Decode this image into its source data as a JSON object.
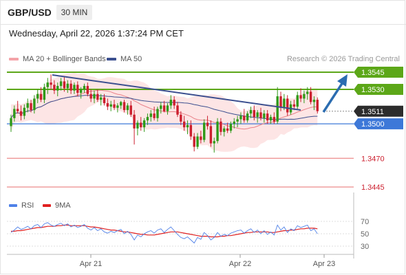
{
  "header": {
    "symbol": "GBP/USD",
    "timeframe": "30 MIN"
  },
  "datetime": "Wednesday, April 22, 2026 1:37:24 PM CET",
  "legend": {
    "ma20_label": "MA 20 + Bollinger Bands",
    "ma50_label": "MA 50",
    "credit": "Research © 2026 Trading Central"
  },
  "colors": {
    "up": "#2f9a18",
    "down": "#cc1f2e",
    "ma20": "#e9828a",
    "ma50": "#3b4f8f",
    "band_fill": "#fde1e1",
    "resistance": "#5ca718",
    "pivot": "#3d78d8",
    "support": "#ec8a8a",
    "trend": "#3b4f8f",
    "arrow": "#2b6cb0",
    "price_box": "#2c2c2c",
    "rsi": "#4f81e8",
    "rsi_ma": "#e02020"
  },
  "levels": [
    {
      "value": 1.3545,
      "label": "1.3545",
      "kind": "resistance"
    },
    {
      "value": 1.353,
      "label": "1.3530",
      "kind": "resistance"
    },
    {
      "value": 1.3511,
      "label": "1.3511",
      "kind": "current"
    },
    {
      "value": 1.35,
      "label": "1.3500",
      "kind": "pivot"
    },
    {
      "value": 1.347,
      "label": "1.3470",
      "kind": "support"
    },
    {
      "value": 1.3445,
      "label": "1.3445",
      "kind": "support"
    }
  ],
  "rsi": {
    "label": "RSI",
    "ma_label": "9MA",
    "ticks": [
      "70",
      "50",
      "30"
    ]
  },
  "xaxis": {
    "labels": [
      "Apr 21",
      "Apr 22",
      "Apr 23"
    ]
  },
  "chart_data": {
    "type": "candlestick",
    "y_scale": "price",
    "x_labels": [
      "Apr 21",
      "Apr 22",
      "Apr 23"
    ],
    "levels": [
      1.3545,
      1.353,
      1.3511,
      1.35,
      1.347,
      1.3445
    ],
    "candles": [
      [
        1.3498,
        1.3508,
        1.3493,
        1.3505
      ],
      [
        1.3505,
        1.3516,
        1.3502,
        1.3513
      ],
      [
        1.3513,
        1.352,
        1.3509,
        1.3511
      ],
      [
        1.3511,
        1.3516,
        1.3503,
        1.3507
      ],
      [
        1.3507,
        1.3517,
        1.3504,
        1.3514
      ],
      [
        1.3514,
        1.3522,
        1.351,
        1.3518
      ],
      [
        1.3518,
        1.3521,
        1.351,
        1.3512
      ],
      [
        1.3512,
        1.3525,
        1.3509,
        1.3522
      ],
      [
        1.3522,
        1.353,
        1.3518,
        1.3526
      ],
      [
        1.3526,
        1.3532,
        1.3519,
        1.3521
      ],
      [
        1.3521,
        1.3535,
        1.3518,
        1.3532
      ],
      [
        1.3532,
        1.354,
        1.3526,
        1.3536
      ],
      [
        1.3536,
        1.3543,
        1.353,
        1.3534
      ],
      [
        1.3534,
        1.3538,
        1.3526,
        1.3529
      ],
      [
        1.3529,
        1.3536,
        1.3524,
        1.3533
      ],
      [
        1.3533,
        1.354,
        1.3529,
        1.3537
      ],
      [
        1.3537,
        1.3541,
        1.3528,
        1.3531
      ],
      [
        1.3531,
        1.3538,
        1.3527,
        1.3535
      ],
      [
        1.3535,
        1.3538,
        1.3526,
        1.3529
      ],
      [
        1.3529,
        1.3536,
        1.3526,
        1.3534
      ],
      [
        1.3534,
        1.3537,
        1.3524,
        1.3527
      ],
      [
        1.3527,
        1.3532,
        1.3522,
        1.353
      ],
      [
        1.353,
        1.3535,
        1.3527,
        1.3533
      ],
      [
        1.3533,
        1.3536,
        1.3524,
        1.3526
      ],
      [
        1.3526,
        1.353,
        1.3519,
        1.3522
      ],
      [
        1.3522,
        1.3529,
        1.3518,
        1.3526
      ],
      [
        1.3526,
        1.353,
        1.3519,
        1.3521
      ],
      [
        1.3521,
        1.3526,
        1.3516,
        1.3523
      ],
      [
        1.3523,
        1.3526,
        1.3516,
        1.3518
      ],
      [
        1.3518,
        1.3522,
        1.3512,
        1.3515
      ],
      [
        1.3515,
        1.352,
        1.3511,
        1.3517
      ],
      [
        1.3517,
        1.3521,
        1.3512,
        1.3514
      ],
      [
        1.3514,
        1.3518,
        1.351,
        1.3516
      ],
      [
        1.3516,
        1.352,
        1.3513,
        1.3519
      ],
      [
        1.3519,
        1.3521,
        1.351,
        1.3512
      ],
      [
        1.3512,
        1.3518,
        1.3508,
        1.3516
      ],
      [
        1.3516,
        1.352,
        1.3506,
        1.3508
      ],
      [
        1.3508,
        1.3512,
        1.3482,
        1.3496
      ],
      [
        1.3496,
        1.3503,
        1.349,
        1.3501
      ],
      [
        1.3501,
        1.3506,
        1.3494,
        1.3497
      ],
      [
        1.3497,
        1.3505,
        1.3493,
        1.3503
      ],
      [
        1.3503,
        1.3509,
        1.3499,
        1.3506
      ],
      [
        1.3506,
        1.3512,
        1.3502,
        1.3509
      ],
      [
        1.3509,
        1.3515,
        1.3503,
        1.3505
      ],
      [
        1.3505,
        1.3515,
        1.3502,
        1.3513
      ],
      [
        1.3513,
        1.3519,
        1.3509,
        1.3516
      ],
      [
        1.3516,
        1.352,
        1.351,
        1.3511
      ],
      [
        1.3511,
        1.3518,
        1.3508,
        1.3516
      ],
      [
        1.3516,
        1.3525,
        1.3513,
        1.3521
      ],
      [
        1.3521,
        1.3524,
        1.3513,
        1.3516
      ],
      [
        1.3516,
        1.3519,
        1.3506,
        1.3508
      ],
      [
        1.3508,
        1.3511,
        1.3499,
        1.3502
      ],
      [
        1.3502,
        1.3507,
        1.3494,
        1.3497
      ],
      [
        1.3497,
        1.3503,
        1.3491,
        1.3499
      ],
      [
        1.3499,
        1.3503,
        1.3486,
        1.3489
      ],
      [
        1.3489,
        1.3492,
        1.3476,
        1.348
      ],
      [
        1.348,
        1.3492,
        1.3478,
        1.3489
      ],
      [
        1.3489,
        1.3494,
        1.3483,
        1.3486
      ],
      [
        1.3486,
        1.3504,
        1.3484,
        1.3501
      ],
      [
        1.3501,
        1.3507,
        1.3495,
        1.3498
      ],
      [
        1.3498,
        1.3503,
        1.348,
        1.3483
      ],
      [
        1.3483,
        1.3488,
        1.3475,
        1.3485
      ],
      [
        1.3485,
        1.3505,
        1.3483,
        1.3502
      ],
      [
        1.3502,
        1.3505,
        1.349,
        1.3493
      ],
      [
        1.3493,
        1.3498,
        1.3489,
        1.3496
      ],
      [
        1.3496,
        1.3501,
        1.3492,
        1.3494
      ],
      [
        1.3494,
        1.3502,
        1.3492,
        1.35
      ],
      [
        1.35,
        1.3505,
        1.3496,
        1.3502
      ],
      [
        1.3502,
        1.3507,
        1.3497,
        1.3504
      ],
      [
        1.3504,
        1.351,
        1.35,
        1.3507
      ],
      [
        1.3507,
        1.3513,
        1.3501,
        1.3503
      ],
      [
        1.3503,
        1.3511,
        1.3501,
        1.3509
      ],
      [
        1.3509,
        1.3515,
        1.3505,
        1.3512
      ],
      [
        1.3512,
        1.3516,
        1.3503,
        1.3506
      ],
      [
        1.3506,
        1.3512,
        1.3501,
        1.351
      ],
      [
        1.351,
        1.3514,
        1.3503,
        1.3505
      ],
      [
        1.3505,
        1.3512,
        1.3501,
        1.3509
      ],
      [
        1.3509,
        1.3512,
        1.35,
        1.3503
      ],
      [
        1.3503,
        1.3508,
        1.35,
        1.3506
      ],
      [
        1.3506,
        1.351,
        1.35,
        1.3502
      ],
      [
        1.3502,
        1.3532,
        1.35,
        1.3524
      ],
      [
        1.3524,
        1.3528,
        1.3511,
        1.3514
      ],
      [
        1.3514,
        1.3526,
        1.3512,
        1.3522
      ],
      [
        1.3522,
        1.3525,
        1.3507,
        1.351
      ],
      [
        1.351,
        1.352,
        1.3508,
        1.3517
      ],
      [
        1.3517,
        1.3521,
        1.3512,
        1.3515
      ],
      [
        1.3515,
        1.3528,
        1.3513,
        1.3525
      ],
      [
        1.3525,
        1.3531,
        1.3519,
        1.3522
      ],
      [
        1.3522,
        1.3529,
        1.3518,
        1.3526
      ],
      [
        1.3526,
        1.3532,
        1.3521,
        1.3528
      ],
      [
        1.3528,
        1.3532,
        1.3517,
        1.3519
      ],
      [
        1.3519,
        1.3524,
        1.3512,
        1.3521
      ],
      [
        1.3521,
        1.3523,
        1.3509,
        1.3511
      ]
    ],
    "rsi": [
      52,
      56,
      61,
      57,
      59,
      62,
      58,
      63,
      65,
      60,
      66,
      68,
      64,
      62,
      65,
      67,
      63,
      66,
      61,
      64,
      60,
      62,
      65,
      59,
      56,
      60,
      55,
      58,
      53,
      51,
      54,
      52,
      55,
      57,
      50,
      54,
      49,
      40,
      48,
      45,
      50,
      53,
      55,
      51,
      56,
      58,
      52,
      57,
      61,
      55,
      49,
      44,
      42,
      45,
      40,
      35,
      44,
      41,
      52,
      47,
      40,
      44,
      52,
      46,
      49,
      47,
      51,
      53,
      55,
      56,
      51,
      55,
      58,
      52,
      56,
      50,
      55,
      49,
      53,
      48,
      64,
      56,
      61,
      52,
      58,
      55,
      63,
      60,
      62,
      64,
      55,
      58,
      50
    ],
    "rsi_ma": [
      54,
      54,
      55,
      55,
      56,
      57,
      58,
      59,
      60,
      60,
      61,
      62,
      62,
      62,
      63,
      63,
      64,
      64,
      63,
      63,
      63,
      63,
      63,
      62,
      61,
      61,
      60,
      59,
      58,
      57,
      56,
      56,
      55,
      54,
      53,
      53,
      52,
      51,
      50,
      49,
      49,
      48,
      48,
      48,
      49,
      50,
      51,
      52,
      53,
      53,
      53,
      52,
      51,
      50,
      49,
      48,
      47,
      46,
      46,
      46,
      45,
      45,
      45,
      46,
      46,
      47,
      47,
      48,
      49,
      50,
      51,
      52,
      52,
      53,
      53,
      53,
      53,
      53,
      52,
      52,
      53,
      54,
      55,
      55,
      56,
      56,
      57,
      58,
      58,
      59,
      59,
      59,
      58
    ]
  }
}
